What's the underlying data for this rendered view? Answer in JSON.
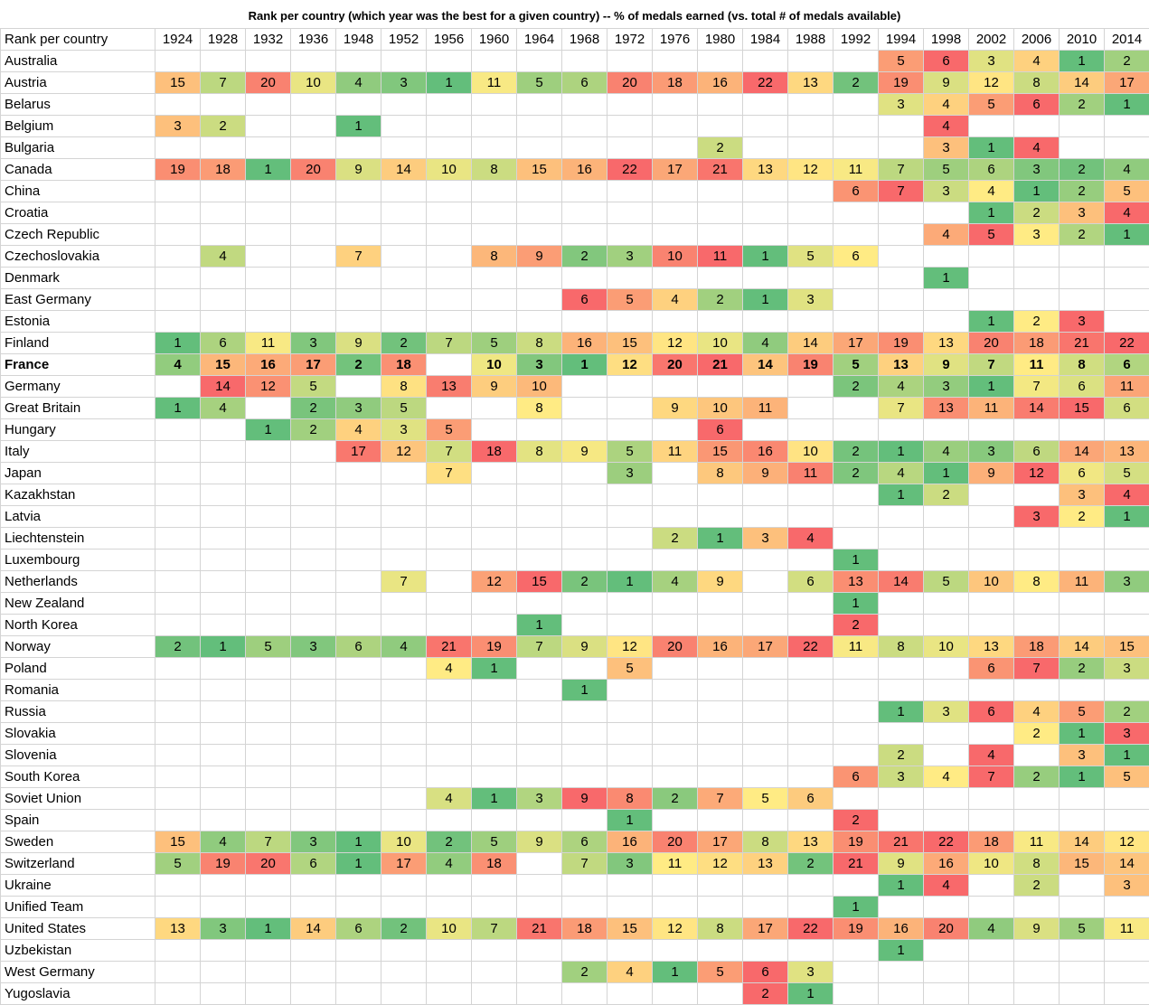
{
  "chart_data": {
    "type": "heatmap",
    "title": "Rank per country (which year was the best for a given country) -- % of medals earned (vs. total # of medals available)",
    "corner_label": "Rank per country",
    "x": [
      "1924",
      "1928",
      "1932",
      "1936",
      "1948",
      "1952",
      "1956",
      "1960",
      "1964",
      "1968",
      "1972",
      "1976",
      "1980",
      "1984",
      "1988",
      "1992",
      "1994",
      "1998",
      "2002",
      "2006",
      "2010",
      "2014"
    ],
    "highlighted_row": "France",
    "color_scale": {
      "low": "#63be7b",
      "mid": "#ffeb84",
      "high": "#f8696b"
    },
    "rows": [
      {
        "name": "Australia",
        "values": [
          null,
          null,
          null,
          null,
          null,
          null,
          null,
          null,
          null,
          null,
          null,
          null,
          null,
          null,
          null,
          null,
          5,
          6,
          3,
          4,
          1,
          2
        ]
      },
      {
        "name": "Austria",
        "values": [
          15,
          7,
          20,
          10,
          4,
          3,
          1,
          11,
          5,
          6,
          20,
          18,
          16,
          22,
          13,
          2,
          19,
          9,
          12,
          8,
          14,
          17
        ]
      },
      {
        "name": "Belarus",
        "values": [
          null,
          null,
          null,
          null,
          null,
          null,
          null,
          null,
          null,
          null,
          null,
          null,
          null,
          null,
          null,
          null,
          3,
          4,
          5,
          6,
          2,
          1
        ]
      },
      {
        "name": "Belgium",
        "values": [
          3,
          2,
          null,
          null,
          1,
          null,
          null,
          null,
          null,
          null,
          null,
          null,
          null,
          null,
          null,
          null,
          null,
          4,
          null,
          null,
          null,
          null
        ]
      },
      {
        "name": "Bulgaria",
        "values": [
          null,
          null,
          null,
          null,
          null,
          null,
          null,
          null,
          null,
          null,
          null,
          null,
          2,
          null,
          null,
          null,
          null,
          3,
          1,
          4,
          null,
          null
        ]
      },
      {
        "name": "Canada",
        "values": [
          19,
          18,
          1,
          20,
          9,
          14,
          10,
          8,
          15,
          16,
          22,
          17,
          21,
          13,
          12,
          11,
          7,
          5,
          6,
          3,
          2,
          4
        ]
      },
      {
        "name": "China",
        "values": [
          null,
          null,
          null,
          null,
          null,
          null,
          null,
          null,
          null,
          null,
          null,
          null,
          null,
          null,
          null,
          6,
          7,
          3,
          4,
          1,
          2,
          5
        ]
      },
      {
        "name": "Croatia",
        "values": [
          null,
          null,
          null,
          null,
          null,
          null,
          null,
          null,
          null,
          null,
          null,
          null,
          null,
          null,
          null,
          null,
          null,
          null,
          1,
          2,
          3,
          4
        ]
      },
      {
        "name": "Czech Republic",
        "values": [
          null,
          null,
          null,
          null,
          null,
          null,
          null,
          null,
          null,
          null,
          null,
          null,
          null,
          null,
          null,
          null,
          null,
          4,
          5,
          3,
          2,
          1
        ]
      },
      {
        "name": "Czechoslovakia",
        "values": [
          null,
          4,
          null,
          null,
          7,
          null,
          null,
          8,
          9,
          2,
          3,
          10,
          11,
          1,
          5,
          6,
          null,
          null,
          null,
          null,
          null,
          null
        ]
      },
      {
        "name": "Denmark",
        "values": [
          null,
          null,
          null,
          null,
          null,
          null,
          null,
          null,
          null,
          null,
          null,
          null,
          null,
          null,
          null,
          null,
          null,
          1,
          null,
          null,
          null,
          null
        ]
      },
      {
        "name": "East Germany",
        "values": [
          null,
          null,
          null,
          null,
          null,
          null,
          null,
          null,
          null,
          6,
          5,
          4,
          2,
          1,
          3,
          null,
          null,
          null,
          null,
          null,
          null,
          null
        ]
      },
      {
        "name": "Estonia",
        "values": [
          null,
          null,
          null,
          null,
          null,
          null,
          null,
          null,
          null,
          null,
          null,
          null,
          null,
          null,
          null,
          null,
          null,
          null,
          1,
          2,
          3,
          null
        ]
      },
      {
        "name": "Finland",
        "values": [
          1,
          6,
          11,
          3,
          9,
          2,
          7,
          5,
          8,
          16,
          15,
          12,
          10,
          4,
          14,
          17,
          19,
          13,
          20,
          18,
          21,
          22
        ]
      },
      {
        "name": "France",
        "values": [
          4,
          15,
          16,
          17,
          2,
          18,
          null,
          10,
          3,
          1,
          12,
          20,
          21,
          14,
          19,
          5,
          13,
          9,
          7,
          11,
          8,
          6
        ]
      },
      {
        "name": "Germany",
        "values": [
          null,
          14,
          12,
          5,
          null,
          8,
          13,
          9,
          10,
          null,
          null,
          null,
          null,
          null,
          null,
          2,
          4,
          3,
          1,
          7,
          6,
          11
        ]
      },
      {
        "name": "Great Britain",
        "values": [
          1,
          4,
          null,
          2,
          3,
          5,
          null,
          null,
          8,
          null,
          null,
          9,
          10,
          11,
          null,
          null,
          7,
          13,
          11,
          14,
          15,
          6
        ]
      },
      {
        "name": "Hungary",
        "values": [
          null,
          null,
          1,
          2,
          4,
          3,
          5,
          null,
          null,
          null,
          null,
          null,
          6,
          null,
          null,
          null,
          null,
          null,
          null,
          null,
          null,
          null
        ]
      },
      {
        "name": "Italy",
        "values": [
          null,
          null,
          null,
          null,
          17,
          12,
          7,
          18,
          8,
          9,
          5,
          11,
          15,
          16,
          10,
          2,
          1,
          4,
          3,
          6,
          14,
          13
        ]
      },
      {
        "name": "Japan",
        "values": [
          null,
          null,
          null,
          null,
          null,
          null,
          7,
          null,
          null,
          null,
          3,
          null,
          8,
          9,
          11,
          2,
          4,
          1,
          9,
          12,
          6,
          5
        ]
      },
      {
        "name": "Kazakhstan",
        "values": [
          null,
          null,
          null,
          null,
          null,
          null,
          null,
          null,
          null,
          null,
          null,
          null,
          null,
          null,
          null,
          null,
          1,
          2,
          null,
          null,
          3,
          4
        ]
      },
      {
        "name": "Latvia",
        "values": [
          null,
          null,
          null,
          null,
          null,
          null,
          null,
          null,
          null,
          null,
          null,
          null,
          null,
          null,
          null,
          null,
          null,
          null,
          null,
          3,
          2,
          1
        ]
      },
      {
        "name": "Liechtenstein",
        "values": [
          null,
          null,
          null,
          null,
          null,
          null,
          null,
          null,
          null,
          null,
          null,
          2,
          1,
          3,
          4,
          null,
          null,
          null,
          null,
          null,
          null,
          null
        ]
      },
      {
        "name": "Luxembourg",
        "values": [
          null,
          null,
          null,
          null,
          null,
          null,
          null,
          null,
          null,
          null,
          null,
          null,
          null,
          null,
          null,
          1,
          null,
          null,
          null,
          null,
          null,
          null
        ]
      },
      {
        "name": "Netherlands",
        "values": [
          null,
          null,
          null,
          null,
          null,
          7,
          null,
          12,
          15,
          2,
          1,
          4,
          9,
          null,
          6,
          13,
          14,
          5,
          10,
          8,
          11,
          3
        ]
      },
      {
        "name": "New Zealand",
        "values": [
          null,
          null,
          null,
          null,
          null,
          null,
          null,
          null,
          null,
          null,
          null,
          null,
          null,
          null,
          null,
          1,
          null,
          null,
          null,
          null,
          null,
          null
        ]
      },
      {
        "name": "North Korea",
        "values": [
          null,
          null,
          null,
          null,
          null,
          null,
          null,
          null,
          1,
          null,
          null,
          null,
          null,
          null,
          null,
          2,
          null,
          null,
          null,
          null,
          null,
          null
        ]
      },
      {
        "name": "Norway",
        "values": [
          2,
          1,
          5,
          3,
          6,
          4,
          21,
          19,
          7,
          9,
          12,
          20,
          16,
          17,
          22,
          11,
          8,
          10,
          13,
          18,
          14,
          15
        ]
      },
      {
        "name": "Poland",
        "values": [
          null,
          null,
          null,
          null,
          null,
          null,
          4,
          1,
          null,
          null,
          5,
          null,
          null,
          null,
          null,
          null,
          null,
          null,
          6,
          7,
          2,
          3
        ]
      },
      {
        "name": "Romania",
        "values": [
          null,
          null,
          null,
          null,
          null,
          null,
          null,
          null,
          null,
          1,
          null,
          null,
          null,
          null,
          null,
          null,
          null,
          null,
          null,
          null,
          null,
          null
        ]
      },
      {
        "name": "Russia",
        "values": [
          null,
          null,
          null,
          null,
          null,
          null,
          null,
          null,
          null,
          null,
          null,
          null,
          null,
          null,
          null,
          null,
          1,
          3,
          6,
          4,
          5,
          2
        ]
      },
      {
        "name": "Slovakia",
        "values": [
          null,
          null,
          null,
          null,
          null,
          null,
          null,
          null,
          null,
          null,
          null,
          null,
          null,
          null,
          null,
          null,
          null,
          null,
          null,
          2,
          1,
          3
        ]
      },
      {
        "name": "Slovenia",
        "values": [
          null,
          null,
          null,
          null,
          null,
          null,
          null,
          null,
          null,
          null,
          null,
          null,
          null,
          null,
          null,
          null,
          2,
          null,
          4,
          null,
          3,
          1
        ]
      },
      {
        "name": "South Korea",
        "values": [
          null,
          null,
          null,
          null,
          null,
          null,
          null,
          null,
          null,
          null,
          null,
          null,
          null,
          null,
          null,
          6,
          3,
          4,
          7,
          2,
          1,
          5
        ]
      },
      {
        "name": "Soviet Union",
        "values": [
          null,
          null,
          null,
          null,
          null,
          null,
          4,
          1,
          3,
          9,
          8,
          2,
          7,
          5,
          6,
          null,
          null,
          null,
          null,
          null,
          null,
          null
        ]
      },
      {
        "name": "Spain",
        "values": [
          null,
          null,
          null,
          null,
          null,
          null,
          null,
          null,
          null,
          null,
          1,
          null,
          null,
          null,
          null,
          2,
          null,
          null,
          null,
          null,
          null,
          null
        ]
      },
      {
        "name": "Sweden",
        "values": [
          15,
          4,
          7,
          3,
          1,
          10,
          2,
          5,
          9,
          6,
          16,
          20,
          17,
          8,
          13,
          19,
          21,
          22,
          18,
          11,
          14,
          12
        ]
      },
      {
        "name": "Switzerland",
        "values": [
          5,
          19,
          20,
          6,
          1,
          17,
          4,
          18,
          null,
          7,
          3,
          11,
          12,
          13,
          2,
          21,
          9,
          16,
          10,
          8,
          15,
          14
        ]
      },
      {
        "name": "Ukraine",
        "values": [
          null,
          null,
          null,
          null,
          null,
          null,
          null,
          null,
          null,
          null,
          null,
          null,
          null,
          null,
          null,
          null,
          1,
          4,
          null,
          2,
          null,
          3
        ]
      },
      {
        "name": "Unified Team",
        "values": [
          null,
          null,
          null,
          null,
          null,
          null,
          null,
          null,
          null,
          null,
          null,
          null,
          null,
          null,
          null,
          1,
          null,
          null,
          null,
          null,
          null,
          null
        ]
      },
      {
        "name": "United States",
        "values": [
          13,
          3,
          1,
          14,
          6,
          2,
          10,
          7,
          21,
          18,
          15,
          12,
          8,
          17,
          22,
          19,
          16,
          20,
          4,
          9,
          5,
          11
        ]
      },
      {
        "name": "Uzbekistan",
        "values": [
          null,
          null,
          null,
          null,
          null,
          null,
          null,
          null,
          null,
          null,
          null,
          null,
          null,
          null,
          null,
          null,
          1,
          null,
          null,
          null,
          null,
          null
        ]
      },
      {
        "name": "West Germany",
        "values": [
          null,
          null,
          null,
          null,
          null,
          null,
          null,
          null,
          null,
          2,
          4,
          1,
          5,
          6,
          3,
          null,
          null,
          null,
          null,
          null,
          null,
          null
        ]
      },
      {
        "name": "Yugoslavia",
        "values": [
          null,
          null,
          null,
          null,
          null,
          null,
          null,
          null,
          null,
          null,
          null,
          null,
          null,
          2,
          1,
          null,
          null,
          null,
          null,
          null,
          null,
          null
        ]
      }
    ]
  }
}
